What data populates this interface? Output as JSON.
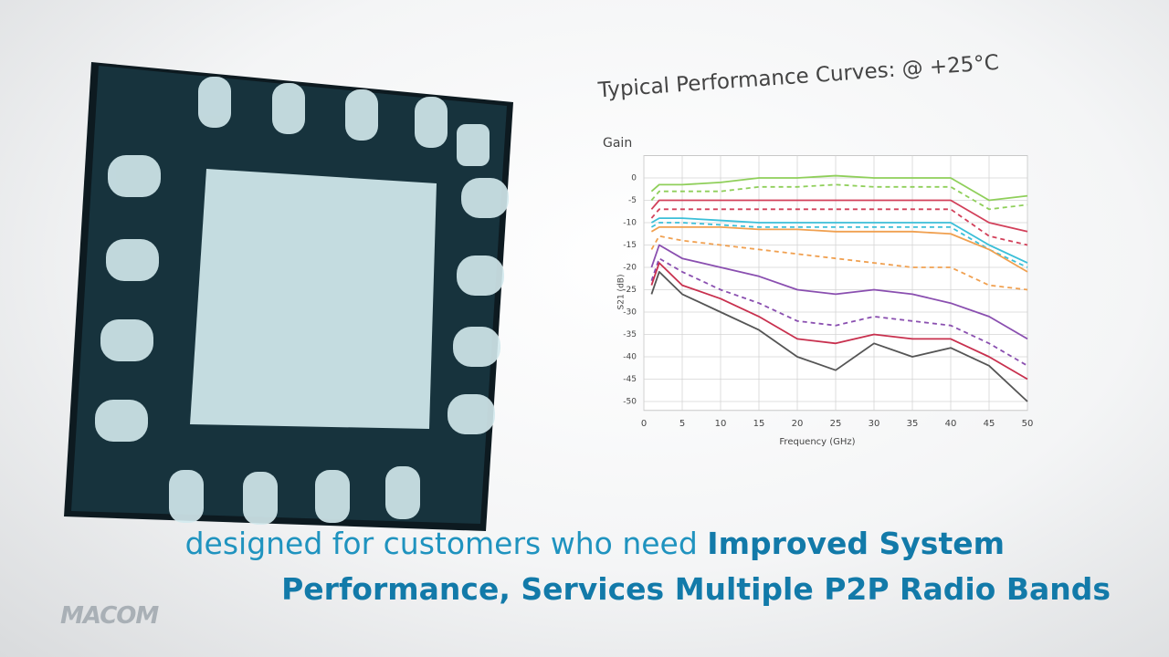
{
  "chart_data": {
    "type": "line",
    "title": "Typical Performance Curves: @ +25°C",
    "subtitle": "Gain",
    "y_label": "S21 (dB)",
    "x_label": "Frequency (GHz)",
    "x": [
      1,
      2,
      5,
      10,
      15,
      20,
      25,
      30,
      35,
      40,
      45,
      50
    ],
    "xlim": [
      0,
      50
    ],
    "xticks": [
      0,
      5,
      10,
      15,
      20,
      25,
      30,
      35,
      40,
      45,
      50
    ],
    "ylim": [
      -52,
      5
    ],
    "yticks": [
      0,
      -5,
      -10,
      -15,
      -20,
      -25,
      -30,
      -35,
      -40,
      -45,
      -50
    ],
    "grid": true,
    "series": [
      {
        "color": "#8fcf5a",
        "dashed": false,
        "values": [
          -3,
          -1.5,
          -1.5,
          -1,
          0,
          0,
          0.5,
          0,
          0,
          0,
          -5,
          -4
        ]
      },
      {
        "color": "#8fcf5a",
        "dashed": true,
        "values": [
          -5,
          -3,
          -3,
          -3,
          -2,
          -2,
          -1.5,
          -2,
          -2,
          -2,
          -7,
          -6
        ]
      },
      {
        "color": "#d2405a",
        "dashed": false,
        "values": [
          -7,
          -5,
          -5,
          -5,
          -5,
          -5,
          -5,
          -5,
          -5,
          -5,
          -10,
          -12
        ]
      },
      {
        "color": "#d2405a",
        "dashed": true,
        "values": [
          -9,
          -7,
          -7,
          -7,
          -7,
          -7,
          -7,
          -7,
          -7,
          -7,
          -13,
          -15
        ]
      },
      {
        "color": "#3bbfd8",
        "dashed": false,
        "values": [
          -10,
          -9,
          -9,
          -9.5,
          -10,
          -10,
          -10,
          -10,
          -10,
          -10,
          -15,
          -19
        ]
      },
      {
        "color": "#3bbfd8",
        "dashed": true,
        "values": [
          -11,
          -10,
          -10,
          -10.5,
          -11,
          -11,
          -11,
          -11,
          -11,
          -11,
          -16,
          -20
        ]
      },
      {
        "color": "#f0a050",
        "dashed": false,
        "values": [
          -12,
          -11,
          -11,
          -11,
          -11.5,
          -11.5,
          -12,
          -12,
          -12,
          -12.5,
          -16,
          -21
        ]
      },
      {
        "color": "#f0a050",
        "dashed": true,
        "values": [
          -16,
          -13,
          -14,
          -15,
          -16,
          -17,
          -18,
          -19,
          -20,
          -20,
          -24,
          -25
        ]
      },
      {
        "color": "#8a4fb0",
        "dashed": false,
        "values": [
          -20,
          -15,
          -18,
          -20,
          -22,
          -25,
          -26,
          -25,
          -26,
          -28,
          -31,
          -36
        ]
      },
      {
        "color": "#8a4fb0",
        "dashed": true,
        "values": [
          -23,
          -18,
          -21,
          -25,
          -28,
          -32,
          -33,
          -31,
          -32,
          -33,
          -37,
          -42
        ]
      },
      {
        "color": "#c8304e",
        "dashed": false,
        "values": [
          -24,
          -19,
          -24,
          -27,
          -31,
          -36,
          -37,
          -35,
          -36,
          -36,
          -40,
          -45
        ]
      },
      {
        "color": "#555555",
        "dashed": false,
        "values": [
          -26,
          -21,
          -26,
          -30,
          -34,
          -40,
          -43,
          -37,
          -40,
          -38,
          -42,
          -50
        ]
      }
    ]
  },
  "caption": {
    "intro": "designed for customers who need",
    "highlight_1": "Improved System",
    "highlight_2": "Performance, Services Multiple P2P Radio Bands"
  },
  "logo": "MACOM"
}
